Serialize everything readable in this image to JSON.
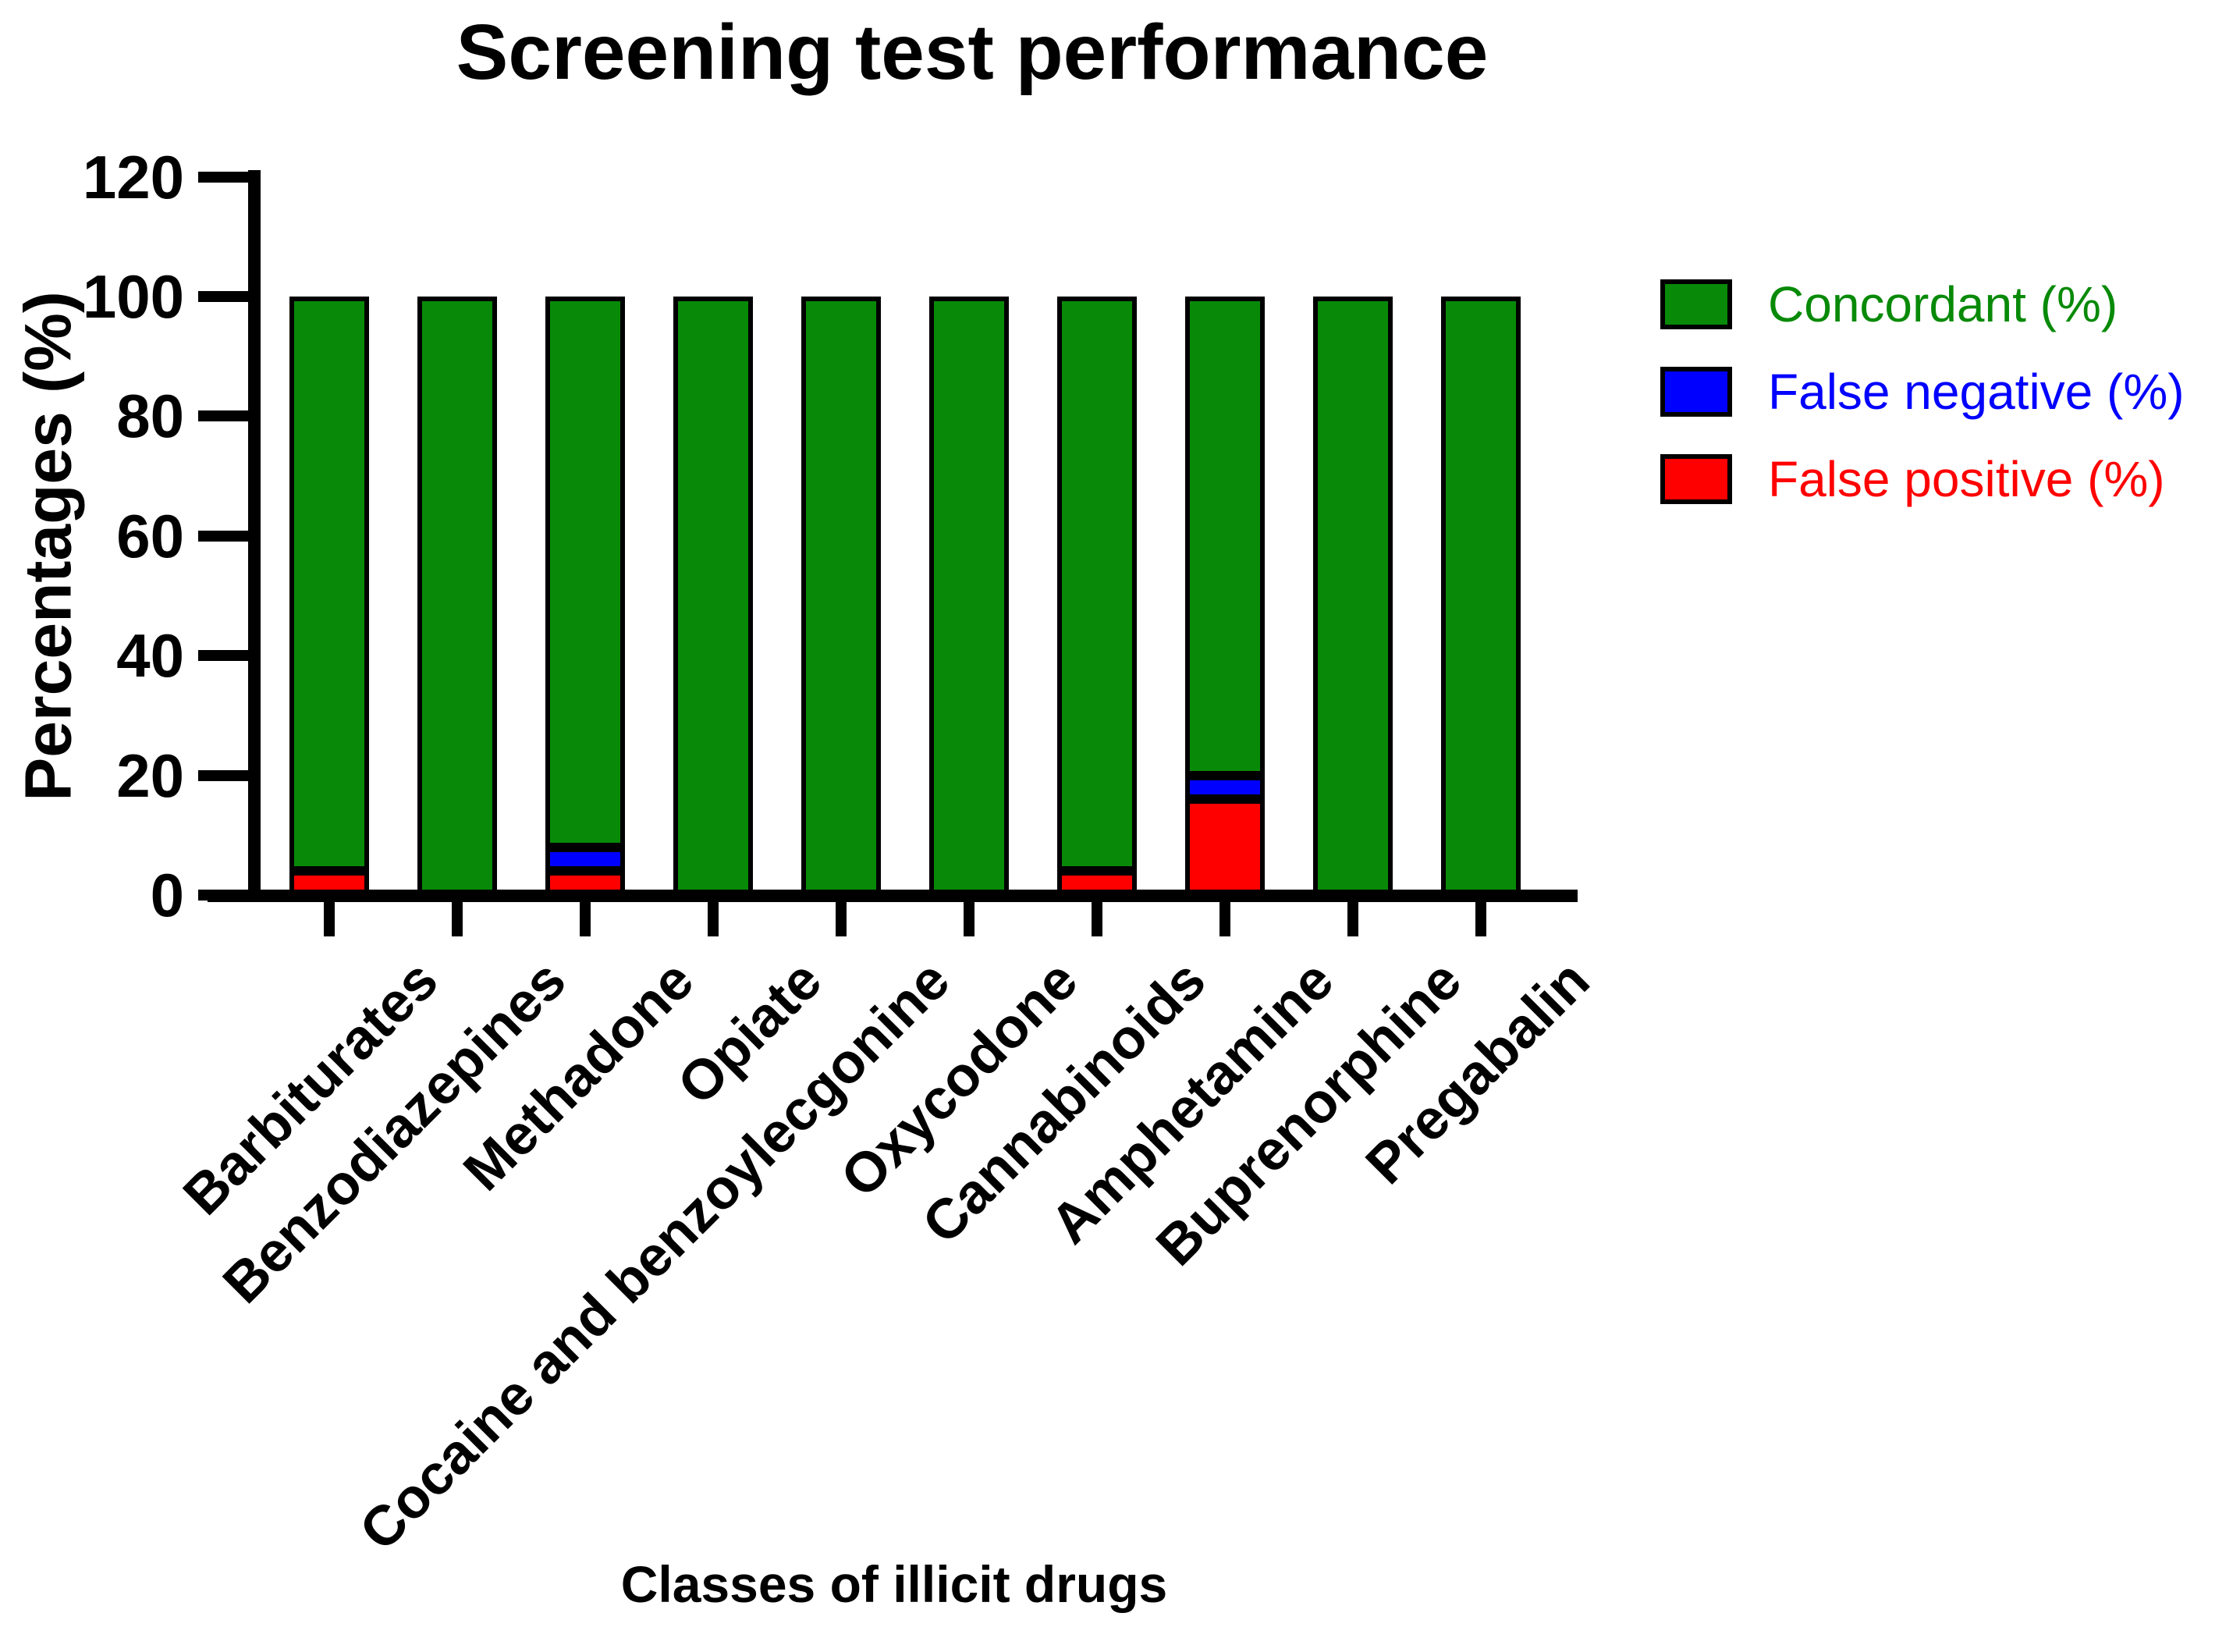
{
  "chart_data": {
    "type": "bar",
    "stacked": true,
    "title": "Screening test performance",
    "xlabel": "Classes of illicit drugs",
    "ylabel": "Percentages (%)",
    "ylim": [
      0,
      120
    ],
    "yticks": [
      0,
      20,
      40,
      60,
      80,
      100,
      120
    ],
    "grid": false,
    "legend_position": "right",
    "categories": [
      "Barbiturates",
      "Benzodiazepines",
      "Methadone",
      "Opiate",
      "Cocaine and benzoylecgonine",
      "Oxycodone",
      "Cannabinoids",
      "Amphetamine",
      "Buprenorphine",
      "Pregabalin"
    ],
    "series": [
      {
        "name": "Concordant (%)",
        "color": "#088A08",
        "values": [
          96,
          100,
          92,
          100,
          100,
          100,
          96,
          80,
          100,
          100
        ]
      },
      {
        "name": "False negative (%)",
        "color": "#0000FF",
        "values": [
          0,
          0,
          4,
          0,
          0,
          0,
          0,
          4,
          0,
          0
        ]
      },
      {
        "name": "False positive (%)",
        "color": "#FF0000",
        "values": [
          4,
          0,
          4,
          0,
          0,
          0,
          4,
          16,
          0,
          0
        ]
      }
    ],
    "stack_order_bottom_to_top": [
      2,
      1,
      0
    ],
    "colors": {
      "axis": "#000000",
      "background": "#FFFFFF",
      "title_text": "#000000"
    }
  }
}
